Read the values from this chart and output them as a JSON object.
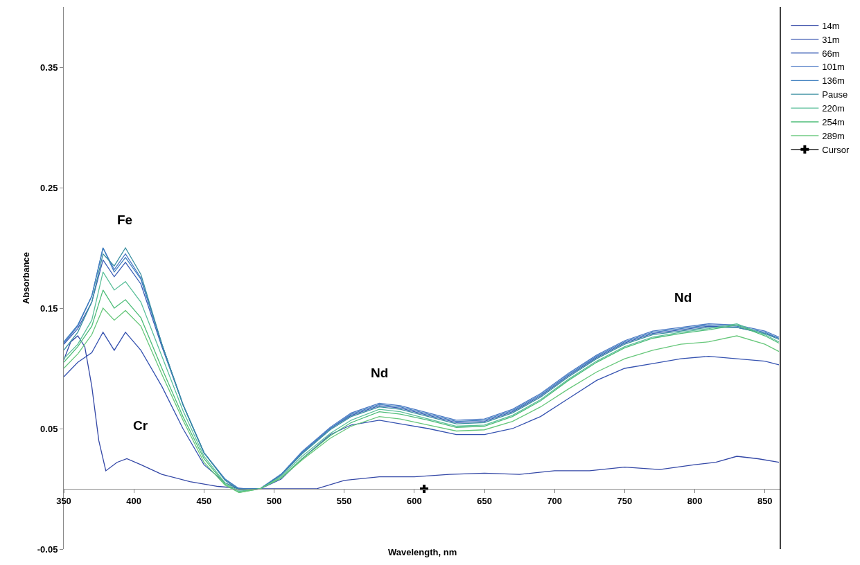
{
  "chart_data": {
    "type": "line",
    "xlabel": "Wavelength, nm",
    "ylabel": "Absorbance",
    "xlim": [
      350,
      861
    ],
    "ylim": [
      -0.05,
      0.4
    ],
    "xticks": [
      350,
      400,
      450,
      500,
      550,
      600,
      650,
      700,
      750,
      800,
      850
    ],
    "yticks": [
      -0.05,
      0.05,
      0.15,
      0.25,
      0.35
    ],
    "legend": "right",
    "marker": "none",
    "line_style": "solid",
    "x": [
      350,
      360,
      370,
      378,
      386,
      394,
      405,
      420,
      435,
      450,
      465,
      475,
      490,
      505,
      520,
      540,
      555,
      575,
      590,
      610,
      630,
      650,
      670,
      690,
      710,
      730,
      750,
      770,
      790,
      810,
      830,
      850,
      860
    ],
    "annotations": [
      "Fe",
      "Cr",
      "Nd",
      "Nd"
    ],
    "series": [
      {
        "name": "14m",
        "color": "#3347a6",
        "x": [
          350,
          355,
          360,
          365,
          370,
          375,
          380,
          388,
          395,
          405,
          420,
          440,
          460,
          480,
          500,
          530,
          550,
          575,
          600,
          625,
          650,
          675,
          700,
          725,
          750,
          775,
          800,
          815,
          830,
          845,
          860
        ],
        "values": [
          0.107,
          0.122,
          0.127,
          0.118,
          0.085,
          0.04,
          0.015,
          0.022,
          0.025,
          0.02,
          0.012,
          0.006,
          0.002,
          0.0,
          0.0,
          0.0,
          0.007,
          0.01,
          0.01,
          0.012,
          0.013,
          0.012,
          0.015,
          0.015,
          0.018,
          0.016,
          0.02,
          0.022,
          0.027,
          0.025,
          0.022
        ]
      },
      {
        "name": "31m",
        "color": "#3552b0",
        "values": [
          0.093,
          0.105,
          0.113,
          0.13,
          0.115,
          0.13,
          0.115,
          0.085,
          0.05,
          0.02,
          0.005,
          0.0,
          0.0,
          0.008,
          0.025,
          0.045,
          0.053,
          0.057,
          0.054,
          0.05,
          0.045,
          0.045,
          0.05,
          0.06,
          0.075,
          0.09,
          0.1,
          0.104,
          0.108,
          0.11,
          0.108,
          0.106,
          0.103
        ]
      },
      {
        "name": "66m",
        "color": "#3a5db5",
        "values": [
          0.12,
          0.133,
          0.155,
          0.19,
          0.176,
          0.188,
          0.17,
          0.118,
          0.07,
          0.03,
          0.008,
          0.0,
          0.0,
          0.012,
          0.03,
          0.05,
          0.061,
          0.069,
          0.067,
          0.061,
          0.055,
          0.056,
          0.064,
          0.077,
          0.094,
          0.109,
          0.121,
          0.129,
          0.132,
          0.135,
          0.134,
          0.129,
          0.125
        ]
      },
      {
        "name": "101m",
        "color": "#4a78c4",
        "values": [
          0.121,
          0.135,
          0.16,
          0.2,
          0.182,
          0.195,
          0.175,
          0.12,
          0.07,
          0.03,
          0.008,
          0.0,
          0.0,
          0.012,
          0.031,
          0.051,
          0.063,
          0.071,
          0.069,
          0.063,
          0.057,
          0.058,
          0.066,
          0.079,
          0.096,
          0.111,
          0.123,
          0.131,
          0.134,
          0.137,
          0.136,
          0.131,
          0.126
        ]
      },
      {
        "name": "136m",
        "color": "#3f7fbf",
        "values": [
          0.122,
          0.136,
          0.16,
          0.2,
          0.18,
          0.192,
          0.174,
          0.12,
          0.07,
          0.03,
          0.008,
          0.0,
          0.0,
          0.012,
          0.03,
          0.05,
          0.062,
          0.07,
          0.068,
          0.062,
          0.056,
          0.057,
          0.065,
          0.078,
          0.095,
          0.11,
          0.122,
          0.13,
          0.133,
          0.136,
          0.135,
          0.13,
          0.125
        ]
      },
      {
        "name": "Pause",
        "color": "#3a8fa0",
        "values": [
          0.115,
          0.13,
          0.155,
          0.195,
          0.185,
          0.2,
          0.178,
          0.12,
          0.07,
          0.03,
          0.007,
          -0.001,
          0.0,
          0.011,
          0.029,
          0.049,
          0.06,
          0.068,
          0.066,
          0.06,
          0.054,
          0.055,
          0.063,
          0.076,
          0.093,
          0.108,
          0.12,
          0.128,
          0.131,
          0.134,
          0.134,
          0.129,
          0.124
        ]
      },
      {
        "name": "220m",
        "color": "#5bbf9a",
        "values": [
          0.108,
          0.12,
          0.14,
          0.18,
          0.165,
          0.172,
          0.155,
          0.11,
          0.065,
          0.027,
          0.005,
          -0.002,
          0.0,
          0.01,
          0.027,
          0.046,
          0.057,
          0.066,
          0.064,
          0.058,
          0.052,
          0.053,
          0.061,
          0.074,
          0.091,
          0.106,
          0.118,
          0.126,
          0.13,
          0.133,
          0.137,
          0.128,
          0.122
        ]
      },
      {
        "name": "254m",
        "color": "#4dbd78",
        "values": [
          0.105,
          0.118,
          0.135,
          0.165,
          0.15,
          0.157,
          0.142,
          0.1,
          0.06,
          0.025,
          0.004,
          -0.003,
          0.0,
          0.009,
          0.025,
          0.044,
          0.055,
          0.064,
          0.062,
          0.057,
          0.051,
          0.052,
          0.06,
          0.073,
          0.09,
          0.105,
          0.117,
          0.125,
          0.129,
          0.132,
          0.136,
          0.127,
          0.121
        ]
      },
      {
        "name": "289m",
        "color": "#66c77a",
        "values": [
          0.1,
          0.112,
          0.128,
          0.15,
          0.14,
          0.148,
          0.135,
          0.095,
          0.057,
          0.022,
          0.003,
          -0.003,
          0.0,
          0.009,
          0.024,
          0.042,
          0.052,
          0.06,
          0.058,
          0.053,
          0.048,
          0.049,
          0.056,
          0.068,
          0.083,
          0.097,
          0.108,
          0.115,
          0.12,
          0.122,
          0.127,
          0.12,
          0.114
        ]
      },
      {
        "name": "Cursor",
        "color": "#000000",
        "marker": "cross",
        "x": [
          607
        ],
        "values": [
          0
        ]
      }
    ]
  }
}
